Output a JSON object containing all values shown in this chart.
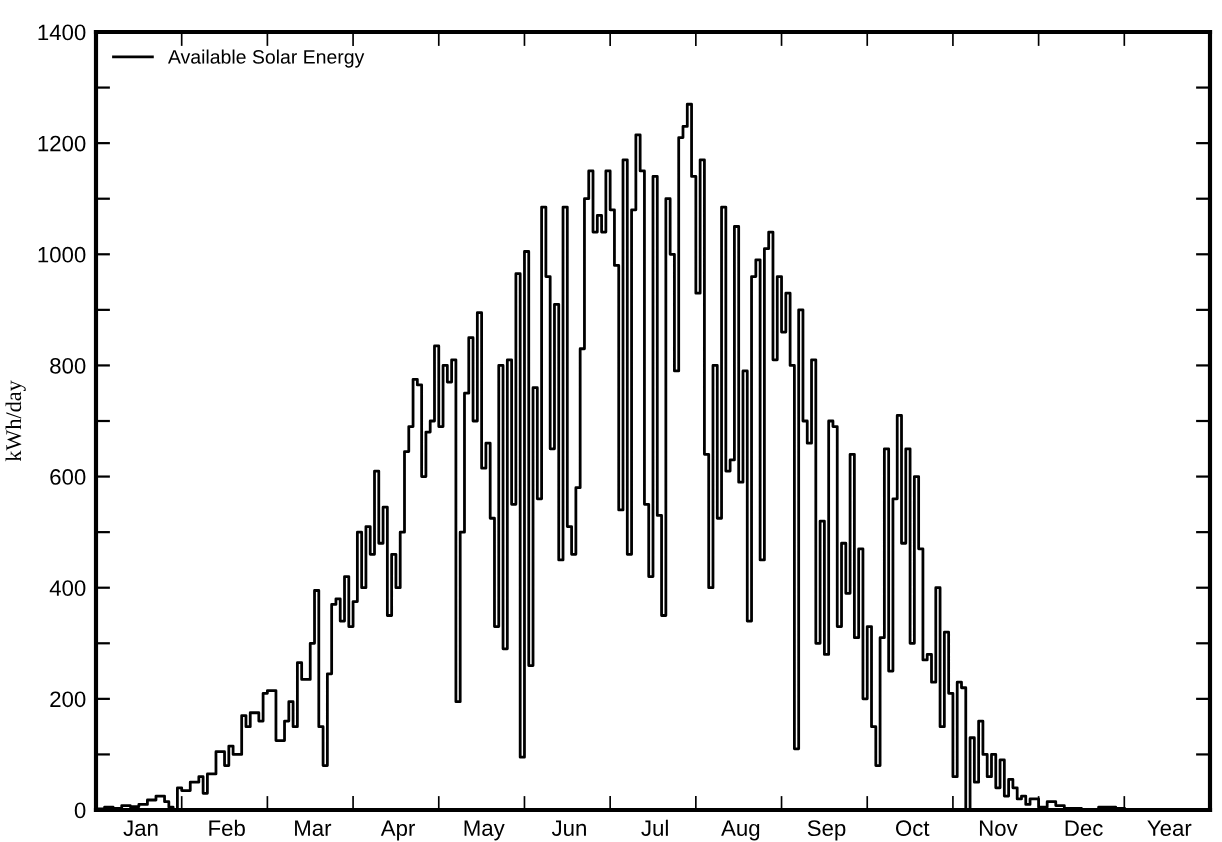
{
  "chart_data": {
    "type": "step",
    "ylabel": "kWh/day",
    "legend": "top left",
    "categories": [
      null,
      null,
      null,
      null,
      null,
      null,
      null,
      null,
      null,
      null,
      "Jan",
      null,
      null,
      null,
      null,
      null,
      null,
      null,
      null,
      null,
      null,
      null,
      null,
      null,
      null,
      null,
      null,
      null,
      null,
      null,
      "Feb",
      null,
      null,
      null,
      null,
      null,
      null,
      null,
      null,
      null,
      null,
      null,
      null,
      null,
      null,
      null,
      null,
      null,
      null,
      null,
      "Mar",
      null,
      null,
      null,
      null,
      null,
      null,
      null,
      null,
      null,
      null,
      null,
      null,
      null,
      null,
      null,
      null,
      null,
      null,
      null,
      "Apr",
      null,
      null,
      null,
      null,
      null,
      null,
      null,
      null,
      null,
      null,
      null,
      null,
      null,
      null,
      null,
      null,
      null,
      null,
      null,
      "May",
      null,
      null,
      null,
      null,
      null,
      null,
      null,
      null,
      null,
      null,
      null,
      null,
      null,
      null,
      null,
      null,
      null,
      null,
      null,
      "Jun",
      null,
      null,
      null,
      null,
      null,
      null,
      null,
      null,
      null,
      null,
      null,
      null,
      null,
      null,
      null,
      null,
      null,
      null,
      null,
      "Jul",
      null,
      null,
      null,
      null,
      null,
      null,
      null,
      null,
      null,
      null,
      null,
      null,
      null,
      null,
      null,
      null,
      null,
      null,
      null,
      "Aug",
      null,
      null,
      null,
      null,
      null,
      null,
      null,
      null,
      null,
      null,
      null,
      null,
      null,
      null,
      null,
      null,
      null,
      null,
      null,
      "Sep",
      null,
      null,
      null,
      null,
      null,
      null,
      null,
      null,
      null,
      null,
      null,
      null,
      null,
      null,
      null,
      null,
      null,
      null,
      null,
      "Oct",
      null,
      null,
      null,
      null,
      null,
      null,
      null,
      null,
      null,
      null,
      null,
      null,
      null,
      null,
      null,
      null,
      null,
      null,
      null,
      "Nov",
      null,
      null,
      null,
      null,
      null,
      null,
      null,
      null,
      null,
      null,
      null,
      null,
      null,
      null,
      null,
      null,
      null,
      null,
      null,
      "Dec",
      null,
      null,
      null,
      null,
      null,
      null,
      null,
      null,
      null,
      null,
      null,
      null,
      null,
      null,
      null,
      null,
      null,
      null,
      null,
      "Year",
      null,
      null,
      null,
      null,
      null,
      null,
      null,
      null,
      null
    ],
    "ylim": [
      0,
      1400
    ],
    "yticks": [
      0,
      {
        "value": 100,
        "label": null
      },
      200,
      {
        "value": 300,
        "label": null
      },
      400,
      {
        "value": 500,
        "label": null
      },
      600,
      {
        "value": 700,
        "label": null
      },
      800,
      {
        "value": 900,
        "label": null
      },
      1000,
      {
        "value": 1100,
        "label": null
      },
      1200,
      {
        "value": 1300,
        "label": null
      },
      1400
    ],
    "series": [
      {
        "name": "Available Solar Energy",
        "color": "#000000",
        "values": [
          2,
          2,
          5,
          5,
          3,
          3,
          8,
          8,
          6,
          6,
          10,
          10,
          18,
          18,
          25,
          25,
          15,
          5,
          0,
          40,
          35,
          35,
          50,
          50,
          60,
          30,
          65,
          65,
          105,
          105,
          80,
          115,
          100,
          100,
          170,
          150,
          175,
          175,
          160,
          210,
          215,
          215,
          125,
          125,
          160,
          195,
          150,
          265,
          235,
          235,
          300,
          395,
          150,
          80,
          245,
          370,
          380,
          340,
          420,
          330,
          375,
          500,
          400,
          510,
          460,
          610,
          480,
          545,
          350,
          460,
          400,
          500,
          645,
          690,
          775,
          765,
          600,
          680,
          700,
          835,
          690,
          800,
          770,
          810,
          195,
          500,
          750,
          850,
          700,
          895,
          615,
          660,
          525,
          330,
          800,
          290,
          810,
          550,
          965,
          95,
          1005,
          260,
          760,
          560,
          1085,
          960,
          650,
          910,
          450,
          1085,
          510,
          460,
          580,
          830,
          1100,
          1150,
          1040,
          1070,
          1040,
          1150,
          1080,
          980,
          540,
          1170,
          460,
          1080,
          1215,
          1150,
          550,
          420,
          1140,
          530,
          350,
          1100,
          1000,
          790,
          1210,
          1230,
          1270,
          1140,
          930,
          1170,
          640,
          400,
          800,
          525,
          1085,
          610,
          630,
          1050,
          590,
          790,
          340,
          960,
          990,
          450,
          1010,
          1040,
          810,
          960,
          860,
          930,
          800,
          110,
          900,
          700,
          660,
          810,
          300,
          520,
          280,
          700,
          690,
          330,
          480,
          390,
          640,
          310,
          470,
          200,
          330,
          150,
          80,
          310,
          650,
          250,
          560,
          710,
          480,
          650,
          300,
          600,
          470,
          270,
          280,
          230,
          400,
          150,
          320,
          210,
          60,
          230,
          220,
          0,
          130,
          50,
          160,
          100,
          60,
          100,
          40,
          90,
          25,
          55,
          40,
          20,
          25,
          10,
          20,
          20,
          5,
          5,
          15,
          15,
          8,
          8,
          3,
          3,
          3,
          3,
          0,
          0,
          0,
          0,
          5,
          5,
          5,
          5,
          3,
          3,
          null,
          null,
          null,
          null,
          null,
          null,
          null,
          null,
          null,
          null,
          null,
          null,
          null,
          null,
          null,
          null,
          null,
          null,
          null,
          null
        ]
      }
    ]
  }
}
